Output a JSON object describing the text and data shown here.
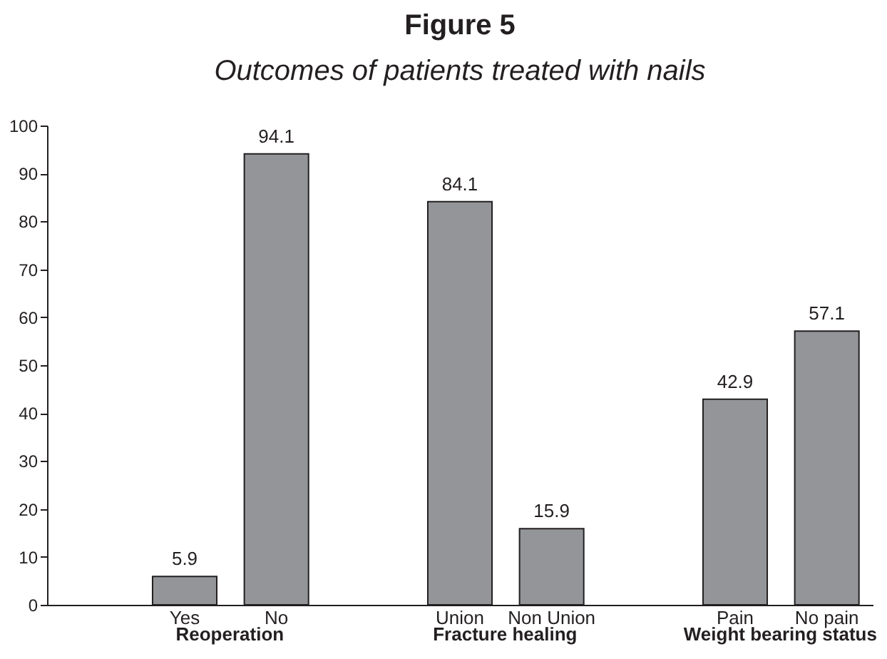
{
  "chart_data": {
    "type": "bar",
    "title": "Figure 5",
    "subtitle": "Outcomes of patients treated with nails",
    "categories": [
      null,
      "Yes",
      "No",
      null,
      "Union",
      "Non Union",
      null,
      "Pain",
      "No pain"
    ],
    "values": [
      null,
      5.9,
      94.1,
      null,
      84.1,
      15.9,
      null,
      42.9,
      57.1
    ],
    "color": "#939598",
    "data_labels": true,
    "grid": false,
    "ylim": [
      0,
      100
    ],
    "yticks": [
      0,
      10,
      20,
      30,
      40,
      50,
      60,
      70,
      80,
      90,
      100
    ],
    "annotations": [
      "Reoperation",
      "Fracture healing",
      "Weight bearing status"
    ]
  }
}
